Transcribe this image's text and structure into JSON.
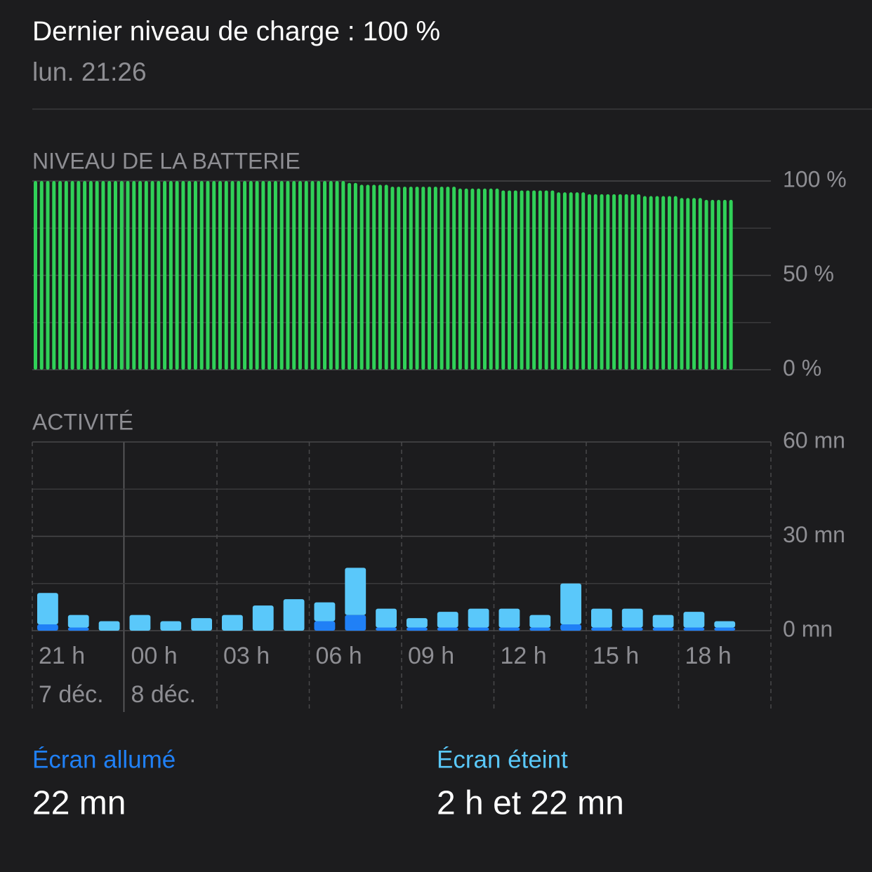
{
  "header": {
    "title": "Dernier niveau de charge : 100 %",
    "subtitle": "lun. 21:26"
  },
  "chart_data": [
    {
      "type": "bar",
      "title": "NIVEAU DE LA BATTERIE",
      "color": "#30d158",
      "values": [
        100,
        100,
        100,
        100,
        100,
        100,
        100,
        100,
        100,
        100,
        100,
        100,
        100,
        100,
        100,
        100,
        100,
        100,
        100,
        100,
        100,
        100,
        100,
        100,
        100,
        100,
        100,
        100,
        100,
        100,
        100,
        100,
        100,
        100,
        100,
        100,
        100,
        100,
        100,
        100,
        100,
        100,
        100,
        100,
        100,
        100,
        100,
        100,
        100,
        100,
        100,
        99,
        99,
        98,
        98,
        98,
        98,
        98,
        97,
        97,
        97,
        97,
        97,
        97,
        97,
        97,
        97,
        97,
        97,
        96,
        96,
        96,
        96,
        96,
        96,
        96,
        95,
        95,
        95,
        95,
        95,
        95,
        95,
        95,
        95,
        94,
        94,
        94,
        94,
        94,
        93,
        93,
        93,
        93,
        93,
        93,
        93,
        93,
        93,
        92,
        92,
        92,
        92,
        92,
        92,
        91,
        91,
        91,
        91,
        90,
        90,
        90,
        90,
        90
      ],
      "ylim": [
        0,
        100
      ],
      "yticks": [
        {
          "value": 0,
          "label": "0 %"
        },
        {
          "value": 50,
          "label": "50 %"
        },
        {
          "value": 100,
          "label": "100 %"
        }
      ],
      "minor_yticks": [
        25,
        75
      ],
      "grid": true
    },
    {
      "type": "stacked_bar",
      "title": "ACTIVITÉ",
      "categories": [
        "21 h",
        null,
        null,
        "00 h",
        null,
        null,
        "03 h",
        null,
        null,
        "06 h",
        null,
        null,
        "09 h",
        null,
        null,
        "12 h",
        null,
        null,
        "15 h",
        null,
        null,
        "18 h",
        null,
        null
      ],
      "date_labels": [
        "7 déc.",
        null,
        null,
        "8 déc.",
        null,
        null,
        null,
        null,
        null,
        null,
        null,
        null,
        null,
        null,
        null,
        null,
        null,
        null,
        null,
        null,
        null,
        null,
        null,
        null
      ],
      "series": [
        {
          "name": "Écran allumé",
          "color": "#2080f6",
          "total": "22 mn",
          "values": [
            2,
            1,
            0,
            0,
            0,
            0,
            0,
            0,
            0,
            3,
            5,
            1,
            1,
            1,
            1,
            1,
            1,
            2,
            1,
            1,
            1,
            1,
            1,
            null
          ]
        },
        {
          "name": "Écran éteint",
          "color": "#5ac8fa",
          "total": "2 h et 22 mn",
          "values": [
            10,
            4,
            3,
            5,
            3,
            4,
            5,
            8,
            10,
            6,
            15,
            6,
            3,
            5,
            6,
            6,
            4,
            13,
            6,
            6,
            4,
            5,
            2,
            null
          ]
        }
      ],
      "ylim": [
        0,
        60
      ],
      "yticks": [
        {
          "value": 0,
          "label": "0 mn"
        },
        {
          "value": 30,
          "label": "30 mn"
        },
        {
          "value": 60,
          "label": "60 mn"
        }
      ],
      "minor_yticks": [
        15,
        45
      ],
      "grid": true
    }
  ]
}
